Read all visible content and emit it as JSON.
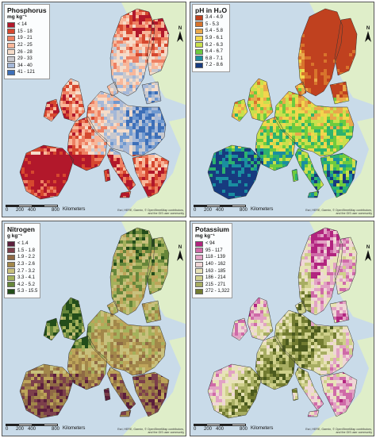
{
  "panels": [
    {
      "id": "phosphorus",
      "title": "Phosphorus",
      "unit": "mg kg⁻¹",
      "palette": [
        "#b2182b",
        "#d6482f",
        "#ee8062",
        "#f8b79a",
        "#f5dcc9",
        "#c8c9cf",
        "#a5b8d8",
        "#6f98cf",
        "#3d6fb8"
      ],
      "legend": [
        {
          "label": "< 14",
          "color": "#b2182b"
        },
        {
          "label": "15 - 18",
          "color": "#d6482f"
        },
        {
          "label": "19 - 21",
          "color": "#ee8062"
        },
        {
          "label": "22 - 25",
          "color": "#f8b79a"
        },
        {
          "label": "26 - 28",
          "color": "#f5dcc9"
        },
        {
          "label": "29 - 33",
          "color": "#c8c9cf"
        },
        {
          "label": "34 - 40",
          "color": "#a5b8d8"
        },
        {
          "label": "41 - 121",
          "color": "#3d6fb8"
        }
      ]
    },
    {
      "id": "ph",
      "title": "pH in H₂O",
      "unit": "",
      "palette": [
        "#c0411f",
        "#d8742c",
        "#e9a84a",
        "#f2d64d",
        "#c9e04c",
        "#6dcb3f",
        "#2db26e",
        "#1a8ea0",
        "#173b7f"
      ],
      "legend": [
        {
          "label": "3.4 - 4.9",
          "color": "#c0411f"
        },
        {
          "label": "5 - 5.3",
          "color": "#d8742c"
        },
        {
          "label": "5.4 - 5.8",
          "color": "#e9a84a"
        },
        {
          "label": "5.9 - 6.1",
          "color": "#f2d64d"
        },
        {
          "label": "6.2 - 6.3",
          "color": "#c9e04c"
        },
        {
          "label": "6.4 - 6.7",
          "color": "#6dcb3f"
        },
        {
          "label": "6.8 - 7.1",
          "color": "#1a8ea0"
        },
        {
          "label": "7.2 - 8.6",
          "color": "#173b7f"
        }
      ]
    },
    {
      "id": "nitrogen",
      "title": "Nitrogen",
      "unit": "g kg⁻¹",
      "palette": [
        "#5b1e3c",
        "#7c3f4b",
        "#8f6a45",
        "#a2874a",
        "#bda45a",
        "#c8c07c",
        "#a4b15c",
        "#66863a",
        "#234d1a"
      ],
      "legend": [
        {
          "label": "< 1.4",
          "color": "#5b1e3c"
        },
        {
          "label": "1.5 - 1.8",
          "color": "#7c3f4b"
        },
        {
          "label": "1.9 - 2.2",
          "color": "#8f6a45"
        },
        {
          "label": "2.3 - 2.6",
          "color": "#a2874a"
        },
        {
          "label": "2.7 - 3.2",
          "color": "#c8c07c"
        },
        {
          "label": "3.3 - 4.1",
          "color": "#a4b15c"
        },
        {
          "label": "4.2 - 5.2",
          "color": "#66863a"
        },
        {
          "label": "5.3 - 15.5",
          "color": "#234d1a"
        }
      ]
    },
    {
      "id": "potassium",
      "title": "Potassium",
      "unit": "mg kg⁻¹",
      "palette": [
        "#b2247f",
        "#cf6aa8",
        "#e2a2c4",
        "#efd7d6",
        "#e8e3b8",
        "#cfd08b",
        "#a7ad62",
        "#727c31",
        "#4b5a1e"
      ],
      "legend": [
        {
          "label": "< 94",
          "color": "#b2247f"
        },
        {
          "label": "95 - 117",
          "color": "#cf6aa8"
        },
        {
          "label": "118 - 139",
          "color": "#e2a2c4"
        },
        {
          "label": "140 - 162",
          "color": "#efd7d6"
        },
        {
          "label": "163 - 185",
          "color": "#e8e3b8"
        },
        {
          "label": "186 - 214",
          "color": "#cfd08b"
        },
        {
          "label": "215 - 271",
          "color": "#a7ad62"
        },
        {
          "label": "272 - 1,322",
          "color": "#727c31"
        }
      ]
    }
  ],
  "scalebar": {
    "ticks": [
      "0",
      "200",
      "400",
      "800"
    ],
    "unit": "Kilometers"
  },
  "credit": "Esri, HERE, Garmin, © OpenStreetMap contributors, and the GIS user community",
  "north_label": "N",
  "colors": {
    "sea": "#c9dbe9",
    "land_outside": "#dfeec9",
    "border": "#333333"
  }
}
